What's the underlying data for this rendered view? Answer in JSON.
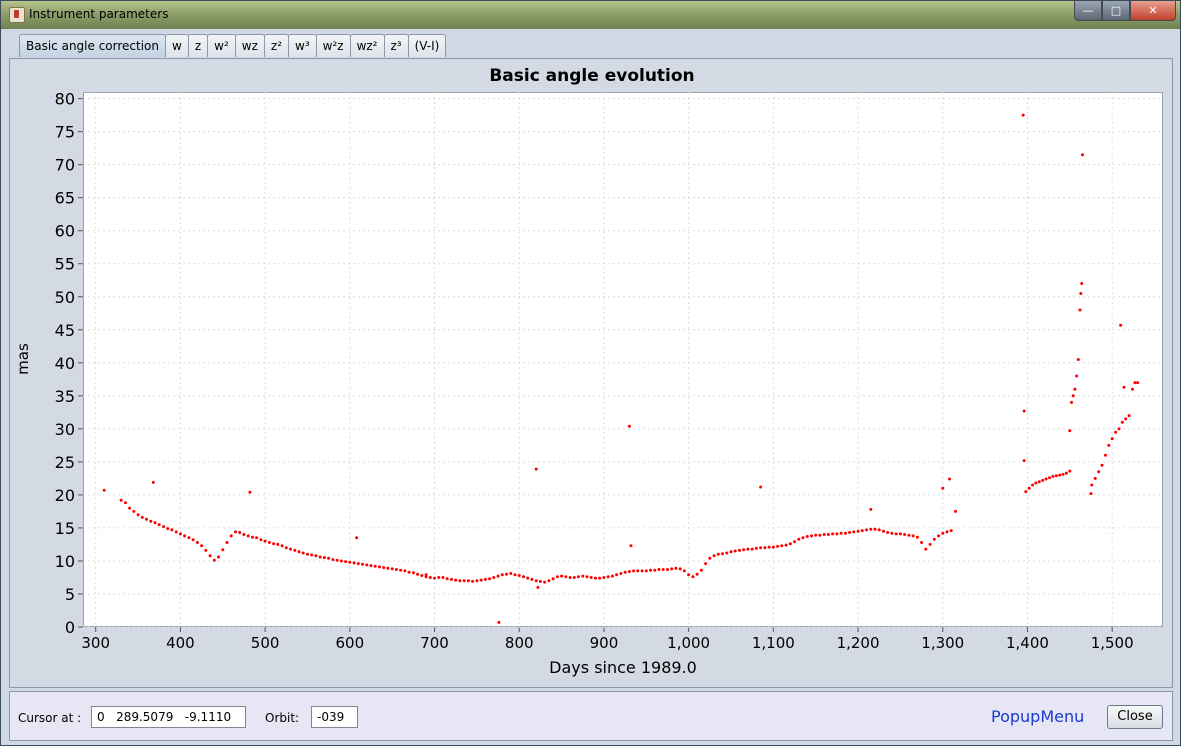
{
  "window": {
    "title": "Instrument parameters",
    "controls": {
      "minimize": "—",
      "maximize": "□",
      "close": "✕"
    }
  },
  "tabs": [
    "Basic angle correction",
    "w",
    "z",
    "w²",
    "wz",
    "z²",
    "w³",
    "w²z",
    "wz²",
    "z³",
    "(V-I)"
  ],
  "active_tab": 0,
  "status": {
    "cursor_label": "Cursor at :",
    "cursor_value": "0   289.5079   -9.1110",
    "orbit_label": "Orbit:",
    "orbit_value": "-039",
    "popup_label": "PopupMenu",
    "close_label": "Close"
  },
  "colors": {
    "series": "#ff0000",
    "accent": "#1a3ad0"
  },
  "chart_data": {
    "type": "scatter",
    "title": "Basic angle evolution",
    "xlabel": "Days since 1989.0",
    "ylabel": "mas",
    "xlim": [
      285,
      1560
    ],
    "ylim": [
      0,
      81
    ],
    "x_ticks": [
      300,
      400,
      500,
      600,
      700,
      800,
      900,
      1000,
      1100,
      1200,
      1300,
      1400,
      1500
    ],
    "x_tick_labels": [
      "300",
      "400",
      "500",
      "600",
      "700",
      "800",
      "900",
      "1,000",
      "1,100",
      "1,200",
      "1,300",
      "1,400",
      "1,500"
    ],
    "y_ticks": [
      0,
      5,
      10,
      15,
      20,
      25,
      30,
      35,
      40,
      45,
      50,
      55,
      60,
      65,
      70,
      75,
      80
    ],
    "grid": true,
    "series": [
      {
        "color": "#ff0000",
        "points": [
          [
            310,
            20.7
          ],
          [
            330,
            19.2
          ],
          [
            335,
            18.8
          ],
          [
            340,
            18.0
          ],
          [
            345,
            17.5
          ],
          [
            350,
            17.0
          ],
          [
            355,
            16.6
          ],
          [
            360,
            16.3
          ],
          [
            365,
            16.0
          ],
          [
            370,
            15.8
          ],
          [
            375,
            15.5
          ],
          [
            380,
            15.2
          ],
          [
            385,
            14.9
          ],
          [
            390,
            14.7
          ],
          [
            395,
            14.4
          ],
          [
            400,
            14.1
          ],
          [
            405,
            13.8
          ],
          [
            410,
            13.5
          ],
          [
            415,
            13.2
          ],
          [
            420,
            12.8
          ],
          [
            425,
            12.3
          ],
          [
            430,
            11.6
          ],
          [
            435,
            10.8
          ],
          [
            440,
            10.1
          ],
          [
            445,
            10.6
          ],
          [
            450,
            11.7
          ],
          [
            455,
            12.8
          ],
          [
            460,
            13.8
          ],
          [
            465,
            14.4
          ],
          [
            470,
            14.3
          ],
          [
            475,
            14.0
          ],
          [
            480,
            13.8
          ],
          [
            485,
            13.6
          ],
          [
            490,
            13.5
          ],
          [
            495,
            13.2
          ],
          [
            500,
            13.0
          ],
          [
            505,
            12.8
          ],
          [
            510,
            12.6
          ],
          [
            515,
            12.5
          ],
          [
            520,
            12.3
          ],
          [
            525,
            12.0
          ],
          [
            530,
            11.8
          ],
          [
            535,
            11.6
          ],
          [
            540,
            11.4
          ],
          [
            545,
            11.2
          ],
          [
            550,
            11.0
          ],
          [
            555,
            10.9
          ],
          [
            560,
            10.8
          ],
          [
            565,
            10.6
          ],
          [
            570,
            10.5
          ],
          [
            575,
            10.4
          ],
          [
            580,
            10.2
          ],
          [
            585,
            10.1
          ],
          [
            590,
            10.0
          ],
          [
            595,
            9.9
          ],
          [
            600,
            9.8
          ],
          [
            605,
            9.7
          ],
          [
            610,
            9.6
          ],
          [
            615,
            9.5
          ],
          [
            620,
            9.4
          ],
          [
            625,
            9.3
          ],
          [
            630,
            9.2
          ],
          [
            635,
            9.1
          ],
          [
            640,
            9.0
          ],
          [
            645,
            8.9
          ],
          [
            650,
            8.8
          ],
          [
            655,
            8.7
          ],
          [
            660,
            8.6
          ],
          [
            665,
            8.5
          ],
          [
            670,
            8.3
          ],
          [
            675,
            8.2
          ],
          [
            680,
            8.0
          ],
          [
            685,
            7.8
          ],
          [
            690,
            7.6
          ],
          [
            695,
            7.5
          ],
          [
            700,
            7.4
          ],
          [
            705,
            7.5
          ],
          [
            710,
            7.5
          ],
          [
            715,
            7.3
          ],
          [
            720,
            7.2
          ],
          [
            725,
            7.1
          ],
          [
            730,
            7.0
          ],
          [
            735,
            7.0
          ],
          [
            740,
            7.0
          ],
          [
            745,
            6.9
          ],
          [
            750,
            7.0
          ],
          [
            755,
            7.1
          ],
          [
            760,
            7.2
          ],
          [
            765,
            7.3
          ],
          [
            770,
            7.5
          ],
          [
            775,
            7.7
          ],
          [
            780,
            7.9
          ],
          [
            785,
            8.0
          ],
          [
            790,
            8.1
          ],
          [
            795,
            7.9
          ],
          [
            800,
            7.8
          ],
          [
            805,
            7.6
          ],
          [
            810,
            7.4
          ],
          [
            815,
            7.2
          ],
          [
            820,
            7.0
          ],
          [
            825,
            6.9
          ],
          [
            830,
            6.8
          ],
          [
            835,
            7.0
          ],
          [
            840,
            7.3
          ],
          [
            845,
            7.6
          ],
          [
            850,
            7.7
          ],
          [
            855,
            7.6
          ],
          [
            860,
            7.5
          ],
          [
            865,
            7.5
          ],
          [
            870,
            7.6
          ],
          [
            875,
            7.7
          ],
          [
            880,
            7.6
          ],
          [
            885,
            7.5
          ],
          [
            890,
            7.4
          ],
          [
            895,
            7.4
          ],
          [
            900,
            7.5
          ],
          [
            905,
            7.6
          ],
          [
            910,
            7.7
          ],
          [
            915,
            7.9
          ],
          [
            920,
            8.1
          ],
          [
            925,
            8.3
          ],
          [
            930,
            8.4
          ],
          [
            935,
            8.5
          ],
          [
            940,
            8.5
          ],
          [
            945,
            8.5
          ],
          [
            950,
            8.5
          ],
          [
            955,
            8.6
          ],
          [
            960,
            8.6
          ],
          [
            965,
            8.7
          ],
          [
            970,
            8.7
          ],
          [
            975,
            8.7
          ],
          [
            980,
            8.8
          ],
          [
            985,
            8.9
          ],
          [
            990,
            8.8
          ],
          [
            995,
            8.5
          ],
          [
            1000,
            7.9
          ],
          [
            1005,
            7.6
          ],
          [
            1010,
            8.0
          ],
          [
            1015,
            8.6
          ],
          [
            1020,
            9.6
          ],
          [
            1025,
            10.4
          ],
          [
            1030,
            10.8
          ],
          [
            1035,
            11.0
          ],
          [
            1040,
            11.1
          ],
          [
            1045,
            11.2
          ],
          [
            1050,
            11.4
          ],
          [
            1055,
            11.5
          ],
          [
            1060,
            11.6
          ],
          [
            1065,
            11.7
          ],
          [
            1070,
            11.8
          ],
          [
            1075,
            11.8
          ],
          [
            1080,
            11.9
          ],
          [
            1085,
            12.0
          ],
          [
            1090,
            12.0
          ],
          [
            1095,
            12.1
          ],
          [
            1100,
            12.1
          ],
          [
            1105,
            12.2
          ],
          [
            1110,
            12.3
          ],
          [
            1115,
            12.4
          ],
          [
            1120,
            12.6
          ],
          [
            1125,
            12.9
          ],
          [
            1130,
            13.3
          ],
          [
            1135,
            13.5
          ],
          [
            1140,
            13.7
          ],
          [
            1145,
            13.8
          ],
          [
            1150,
            13.9
          ],
          [
            1155,
            13.9
          ],
          [
            1160,
            14.0
          ],
          [
            1165,
            14.0
          ],
          [
            1170,
            14.1
          ],
          [
            1175,
            14.1
          ],
          [
            1180,
            14.2
          ],
          [
            1185,
            14.2
          ],
          [
            1190,
            14.3
          ],
          [
            1195,
            14.4
          ],
          [
            1200,
            14.5
          ],
          [
            1205,
            14.6
          ],
          [
            1210,
            14.7
          ],
          [
            1215,
            14.8
          ],
          [
            1220,
            14.8
          ],
          [
            1225,
            14.7
          ],
          [
            1230,
            14.5
          ],
          [
            1235,
            14.3
          ],
          [
            1240,
            14.2
          ],
          [
            1245,
            14.1
          ],
          [
            1250,
            14.1
          ],
          [
            1255,
            14.0
          ],
          [
            1260,
            13.9
          ],
          [
            1265,
            13.8
          ],
          [
            1270,
            13.6
          ],
          [
            1275,
            12.8
          ],
          [
            1280,
            11.8
          ],
          [
            1285,
            12.5
          ],
          [
            1290,
            13.3
          ],
          [
            1295,
            13.8
          ],
          [
            1300,
            14.2
          ],
          [
            1305,
            14.4
          ],
          [
            1310,
            14.6
          ],
          [
            1315,
            17.5
          ],
          [
            1398,
            20.5
          ],
          [
            1402,
            21.0
          ],
          [
            1406,
            21.5
          ],
          [
            1410,
            21.8
          ],
          [
            1414,
            22.0
          ],
          [
            1418,
            22.2
          ],
          [
            1422,
            22.4
          ],
          [
            1426,
            22.6
          ],
          [
            1430,
            22.8
          ],
          [
            1434,
            22.9
          ],
          [
            1438,
            23.0
          ],
          [
            1442,
            23.1
          ],
          [
            1446,
            23.3
          ],
          [
            1450,
            23.6
          ],
          [
            1452,
            34.0
          ],
          [
            1454,
            35.0
          ],
          [
            1456,
            36.0
          ],
          [
            1458,
            38.0
          ],
          [
            1460,
            40.5
          ],
          [
            1462,
            48.0
          ],
          [
            1463,
            50.5
          ],
          [
            1464,
            52.0
          ],
          [
            1476,
            21.5
          ],
          [
            1480,
            22.5
          ],
          [
            1484,
            23.5
          ],
          [
            1488,
            24.5
          ],
          [
            1492,
            26.0
          ],
          [
            1496,
            27.5
          ],
          [
            1500,
            28.5
          ],
          [
            1504,
            29.5
          ],
          [
            1508,
            30.0
          ],
          [
            1512,
            31.0
          ],
          [
            1516,
            31.5
          ],
          [
            1520,
            32.0
          ],
          [
            1524,
            36.0
          ],
          [
            1527,
            37.0
          ],
          [
            1530,
            37.0
          ],
          [
            368,
            21.9
          ],
          [
            482,
            20.4
          ],
          [
            608,
            13.5
          ],
          [
            690,
            7.9
          ],
          [
            776,
            0.7
          ],
          [
            820,
            23.9
          ],
          [
            822,
            6.0
          ],
          [
            930,
            30.4
          ],
          [
            932,
            12.3
          ],
          [
            1085,
            21.2
          ],
          [
            1215,
            17.8
          ],
          [
            1300,
            21.0
          ],
          [
            1308,
            22.4
          ],
          [
            1395,
            77.5
          ],
          [
            1396,
            32.7
          ],
          [
            1396,
            25.2
          ],
          [
            1450,
            29.7
          ],
          [
            1465,
            71.5
          ],
          [
            1510,
            45.7
          ],
          [
            1514,
            36.3
          ],
          [
            1475,
            20.2
          ]
        ]
      }
    ]
  }
}
